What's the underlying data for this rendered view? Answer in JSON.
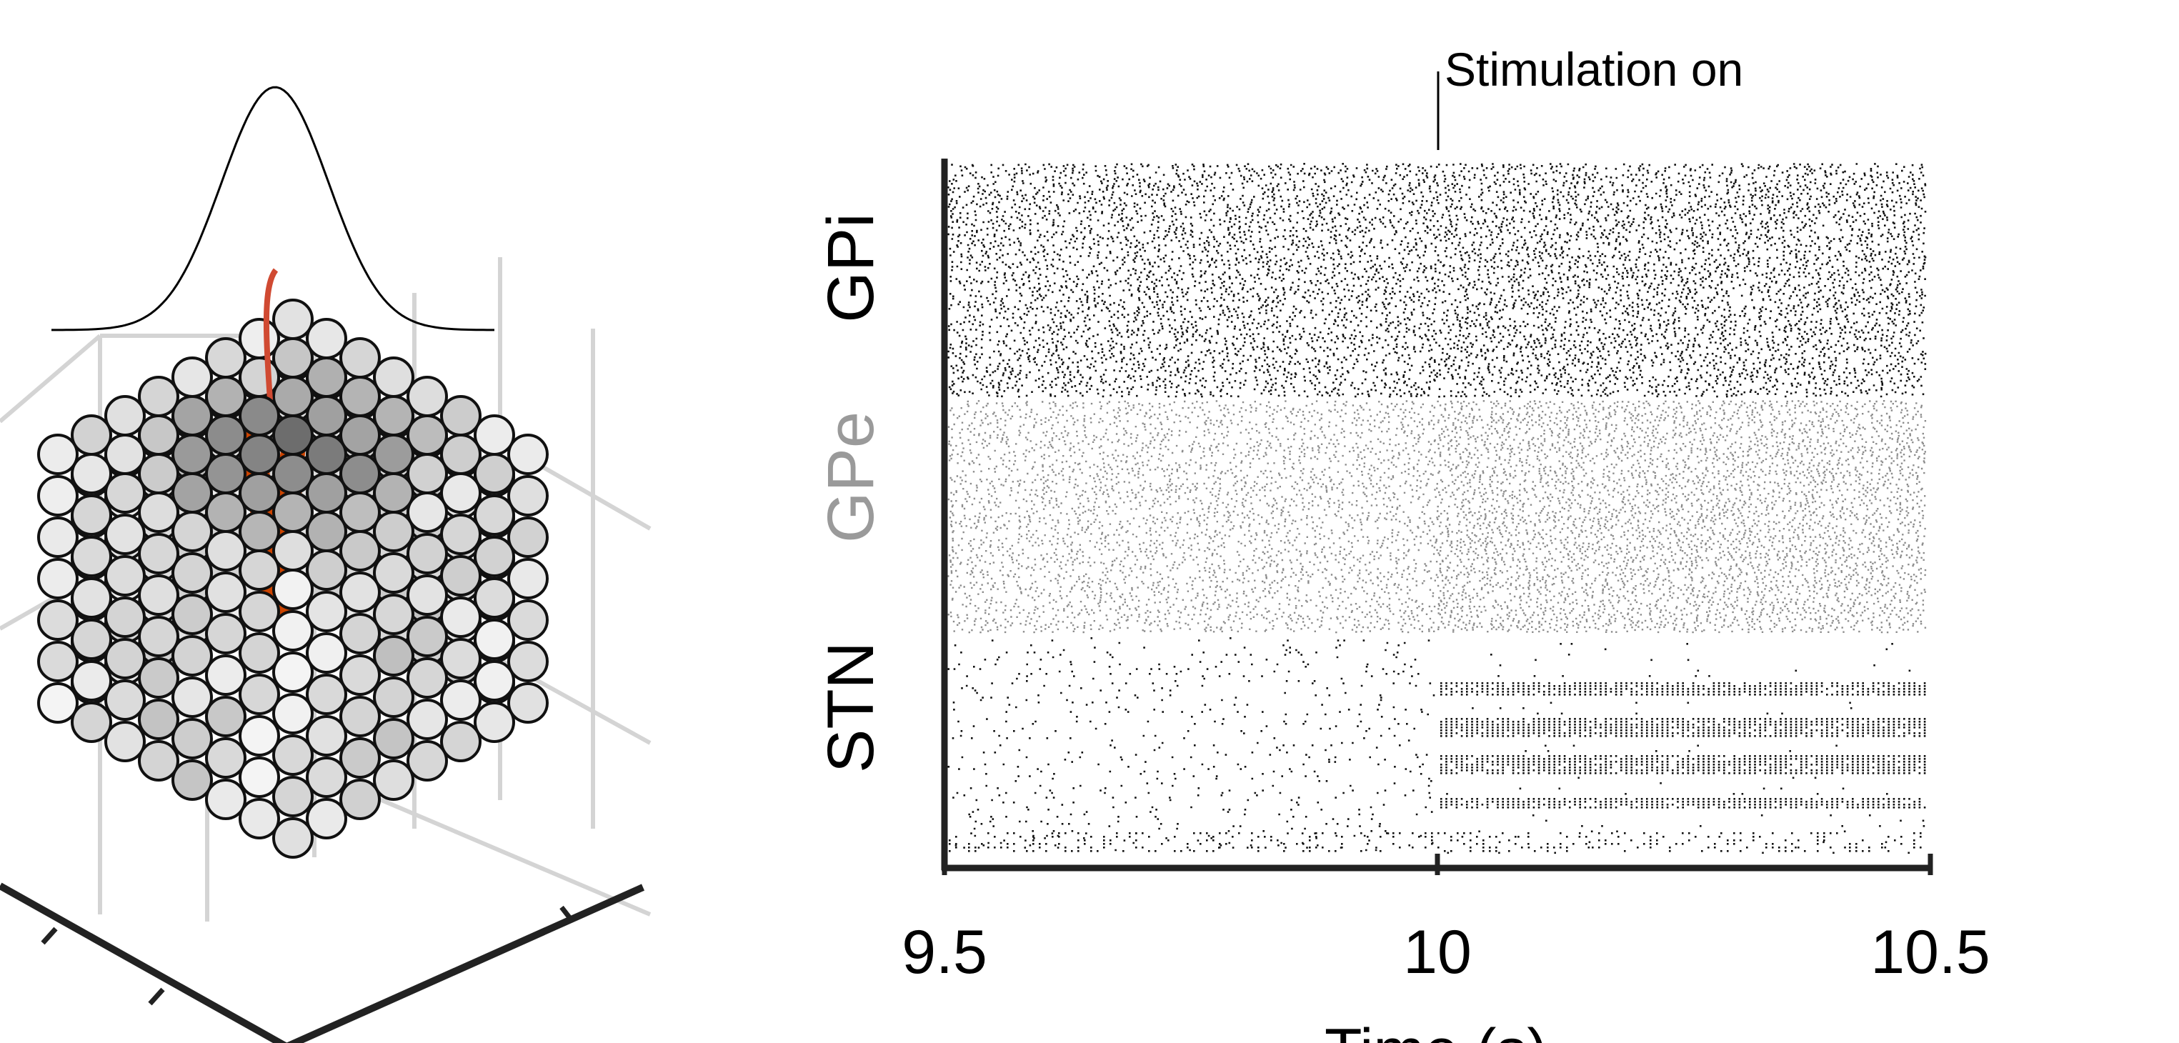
{
  "chart_data": [
    {
      "type": "diagram",
      "description_visible": "3D lattice of spheres with an orange electrode and a gaussian profile",
      "colors": {
        "electrode": "#cc4400",
        "sphere_edge": "#111111",
        "grid": "#d4d4d4",
        "curve": "#000000"
      }
    },
    {
      "type": "scatter",
      "subtype": "raster",
      "xlabel": "Time (s)",
      "ylabel": "",
      "xlim": [
        9.5,
        10.5
      ],
      "xticks": [
        "9.5",
        "10",
        "10.5"
      ],
      "annotation": {
        "text": "Stimulation on",
        "x": 10
      },
      "groups": [
        {
          "name": "GPi",
          "color": "#111111",
          "label_color": "#000000"
        },
        {
          "name": "GPe",
          "color": "#8c8c8c",
          "label_color": "#9a9a9a"
        },
        {
          "name": "STN",
          "color": "#111111",
          "label_color": "#000000"
        }
      ],
      "grid": false
    }
  ]
}
